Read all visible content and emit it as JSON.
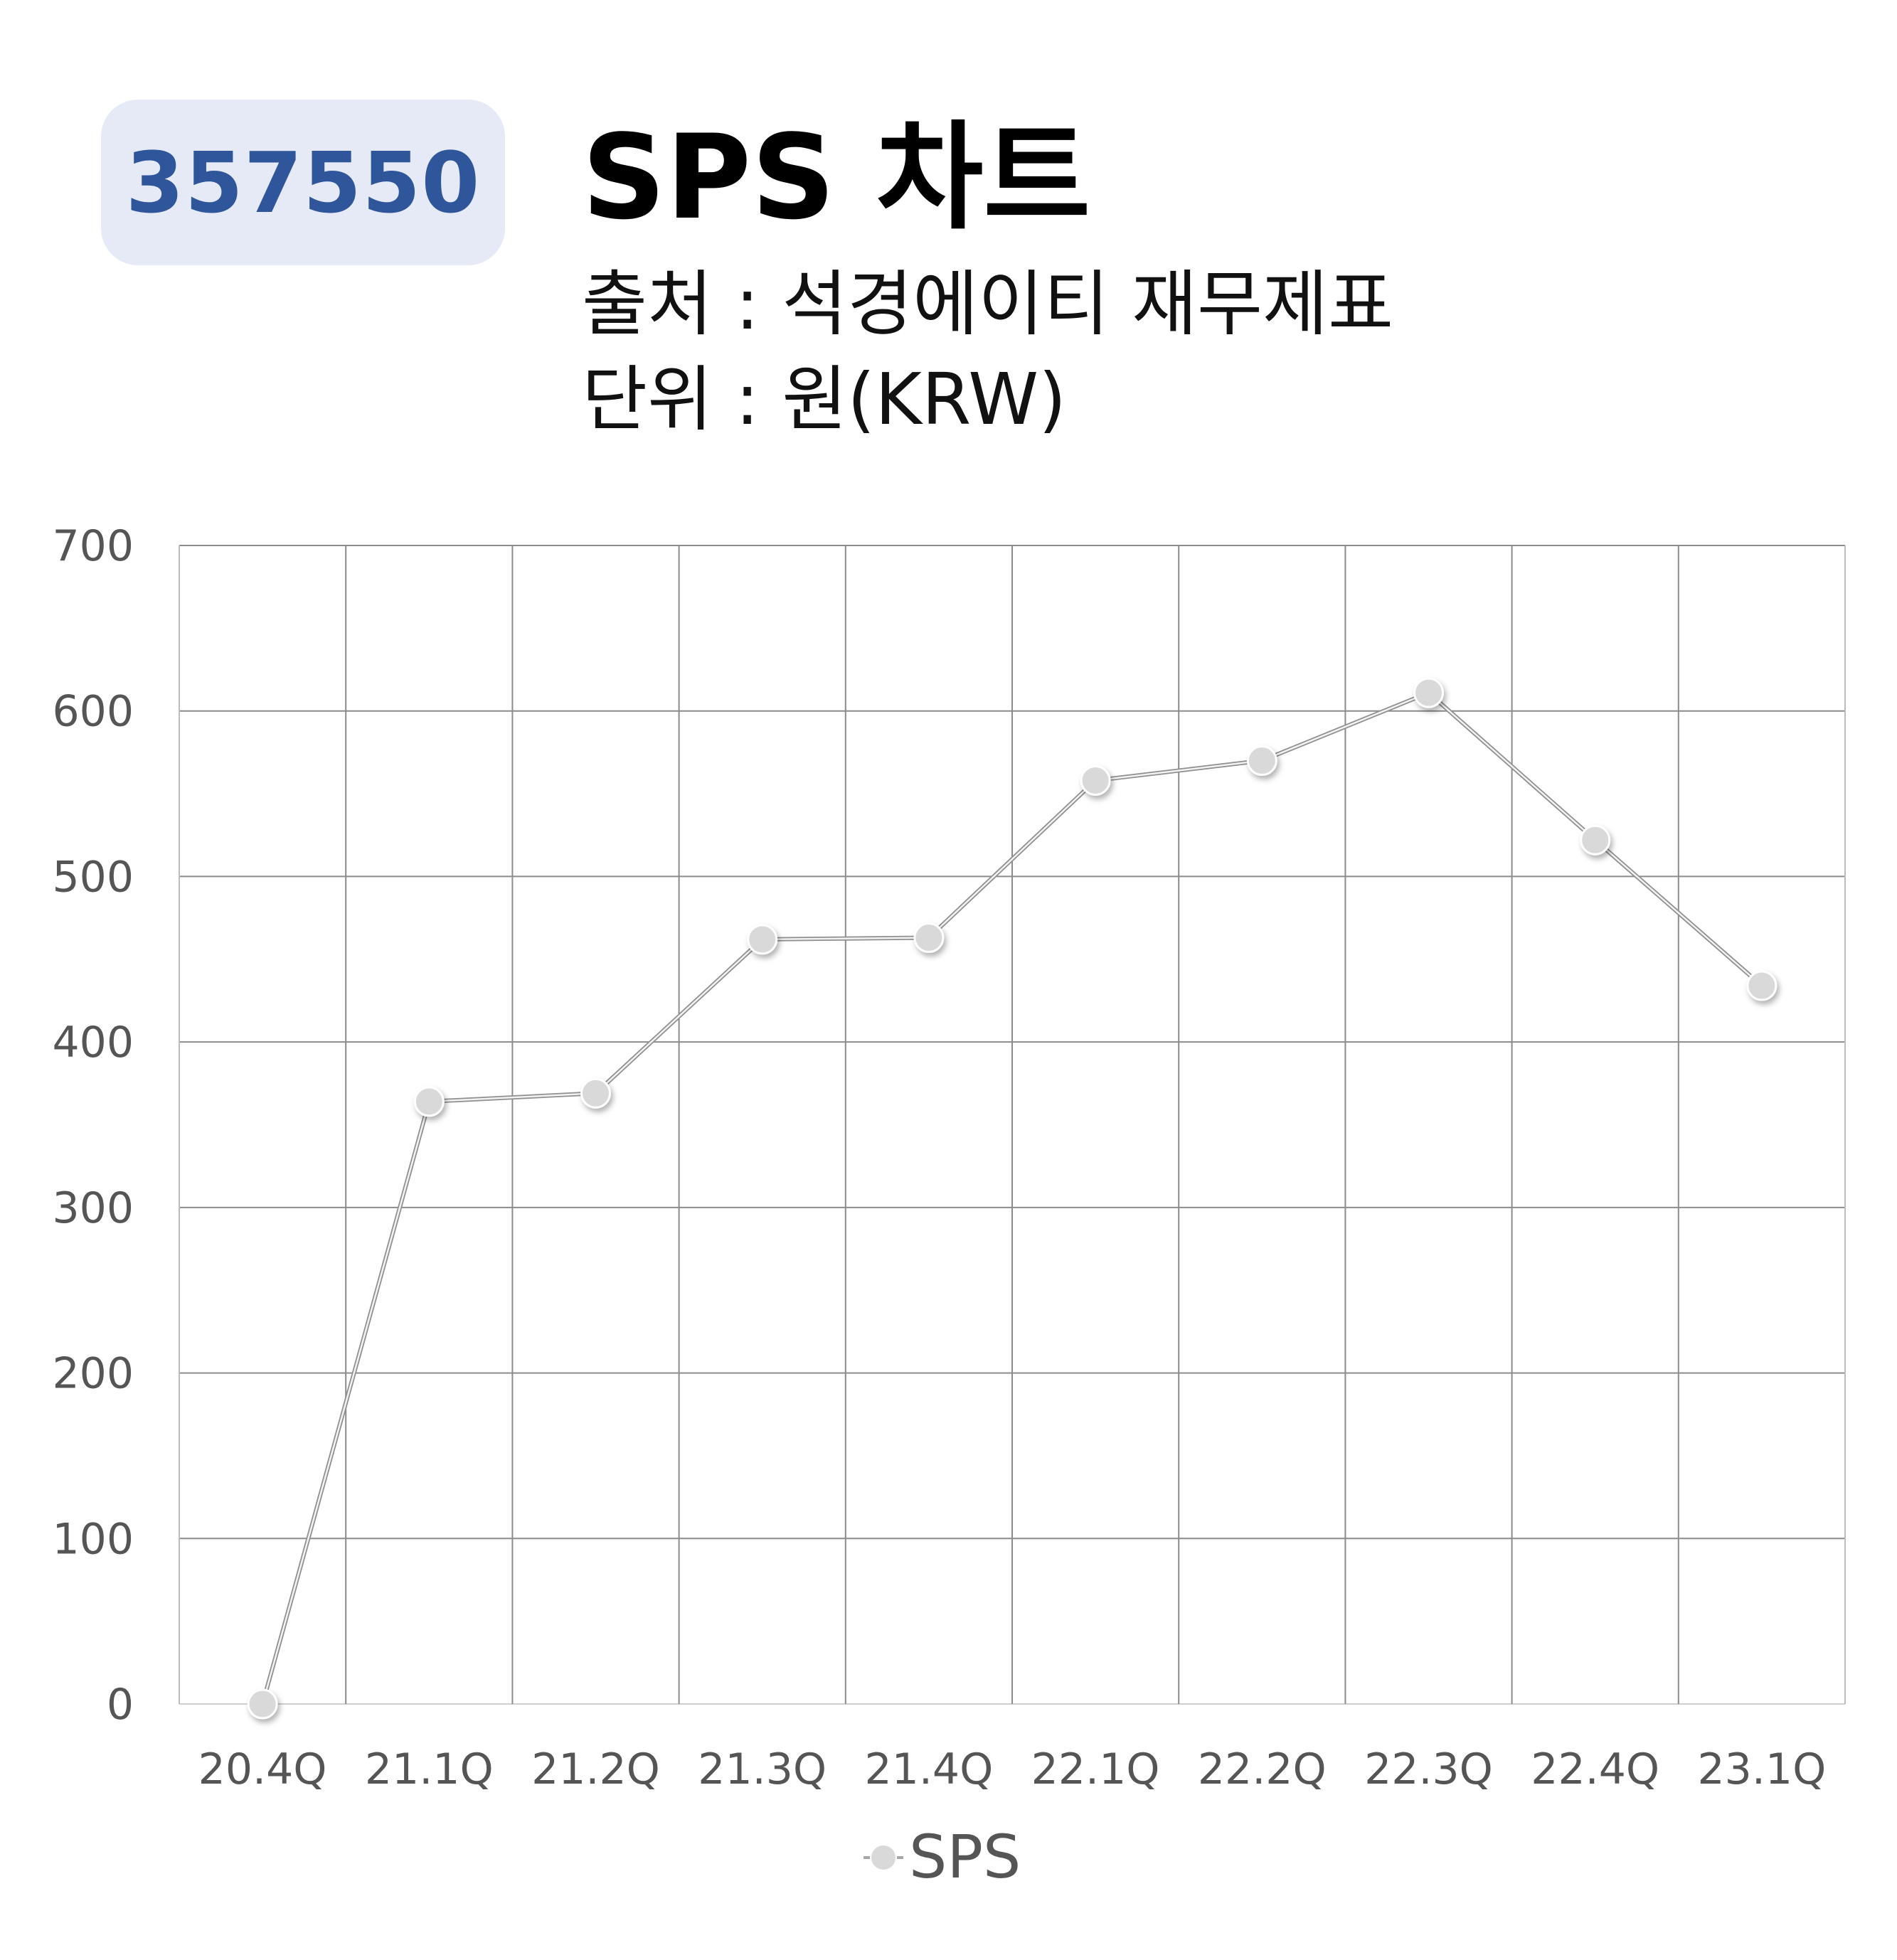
{
  "header": {
    "code": "357550",
    "title": "SPS 차트",
    "source": "출처 : 석경에이티 재무제표",
    "unit": "단위 : 원(KRW)"
  },
  "chart_data": {
    "type": "line",
    "categories": [
      "20.4Q",
      "21.1Q",
      "21.2Q",
      "21.3Q",
      "21.4Q",
      "22.1Q",
      "22.2Q",
      "22.3Q",
      "22.4Q",
      "23.1Q"
    ],
    "series": [
      {
        "name": "SPS",
        "values": [
          0,
          364,
          369,
          462,
          463,
          558,
          570,
          611,
          522,
          434
        ]
      }
    ],
    "ylim": [
      0,
      700
    ],
    "yticks": [
      0,
      100,
      200,
      300,
      400,
      500,
      600,
      700
    ],
    "grid": true,
    "legend_position": "bottom",
    "colors": {
      "line": "#a6a6a6",
      "marker": "#d9d9d9",
      "grid": "#8c8c8c"
    }
  }
}
